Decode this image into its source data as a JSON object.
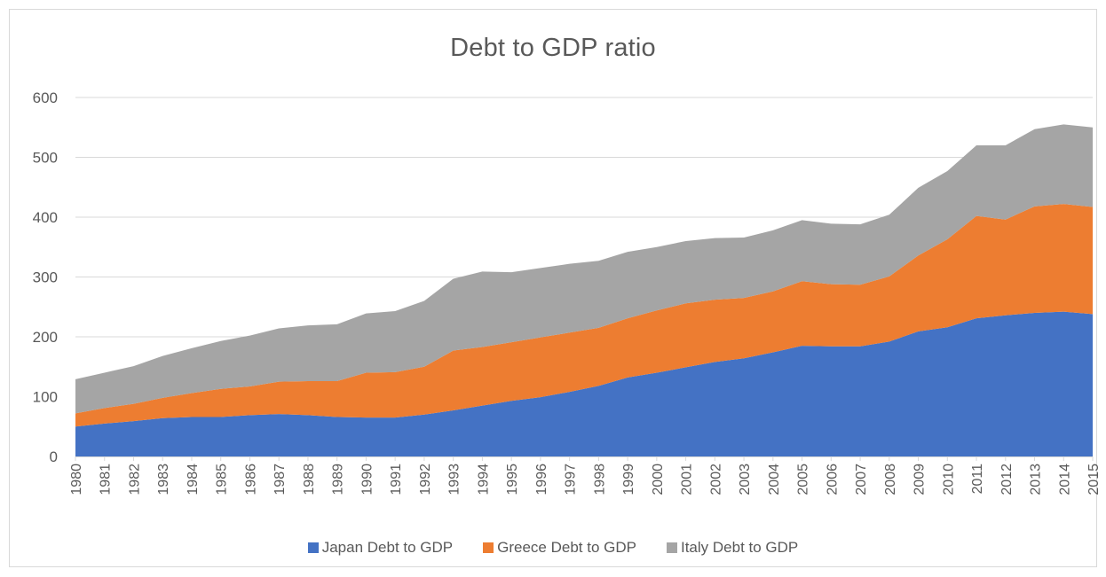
{
  "chart_data": {
    "type": "area",
    "stacked": true,
    "title": "Debt to GDP ratio",
    "xlabel": "",
    "ylabel": "",
    "ylim": [
      0,
      600
    ],
    "yticks": [
      0,
      100,
      200,
      300,
      400,
      500,
      600
    ],
    "grid": true,
    "legend_position": "bottom",
    "categories": [
      "1980",
      "1981",
      "1982",
      "1983",
      "1984",
      "1985",
      "1986",
      "1987",
      "1988",
      "1989",
      "1990",
      "1991",
      "1992",
      "1993",
      "1994",
      "1995",
      "1996",
      "1997",
      "1998",
      "1999",
      "2000",
      "2001",
      "2002",
      "2003",
      "2004",
      "2005",
      "2006",
      "2007",
      "2008",
      "2009",
      "2010",
      "2011",
      "2012",
      "2013",
      "2014",
      "2015"
    ],
    "series": [
      {
        "name": "Japan Debt to GDP",
        "color": "#4472c4",
        "values": [
          50,
          55,
          59,
          64,
          66,
          66,
          69,
          71,
          69,
          66,
          65,
          65,
          70,
          77,
          85,
          93,
          99,
          108,
          118,
          132,
          140,
          149,
          158,
          164,
          174,
          185,
          184,
          184,
          192,
          209,
          216,
          231,
          236,
          240,
          242,
          238
        ]
      },
      {
        "name": "Greece Debt to GDP",
        "color": "#ed7d31",
        "values": [
          22,
          26,
          29,
          34,
          40,
          47,
          48,
          54,
          57,
          60,
          75,
          76,
          80,
          100,
          98,
          98,
          100,
          99,
          97,
          99,
          104,
          107,
          104,
          101,
          102,
          108,
          104,
          103,
          109,
          127,
          147,
          171,
          160,
          178,
          180,
          179
        ]
      },
      {
        "name": "Italy Debt to GDP",
        "color": "#a5a5a5",
        "values": [
          57,
          59,
          63,
          70,
          75,
          80,
          85,
          89,
          93,
          95,
          99,
          102,
          110,
          120,
          126,
          117,
          116,
          115,
          112,
          111,
          106,
          104,
          103,
          101,
          102,
          102,
          101,
          101,
          103,
          113,
          114,
          118,
          124,
          129,
          133,
          133
        ]
      }
    ]
  }
}
